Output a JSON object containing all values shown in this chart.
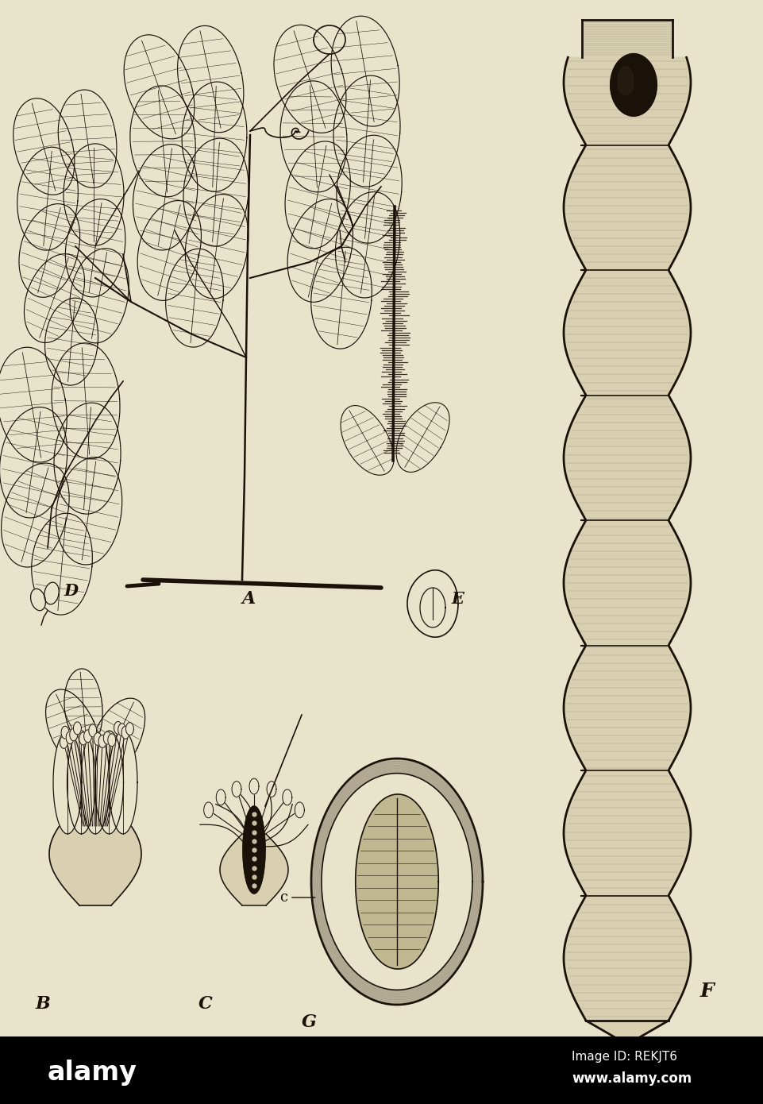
{
  "bg_color": "#e8e4cc",
  "watermark_bar_color": "#000000",
  "watermark_text_color": "#ffffff",
  "watermark_text": "alamy",
  "watermark_id": "Image ID: REKJT6",
  "watermark_url": "www.alamy.com",
  "label_A": "A",
  "label_B": "B",
  "label_C": "C",
  "label_D": "D",
  "label_E": "E",
  "label_F": "F",
  "label_G": "G",
  "label_c": "c",
  "ink_color": "#1a1209",
  "pod_fill": "#d8d0b0",
  "pod_fill2": "#c8c0a0",
  "seed_fill": "#c0b890",
  "fig_width": 9.62,
  "fig_height": 13.9,
  "dpi": 100
}
